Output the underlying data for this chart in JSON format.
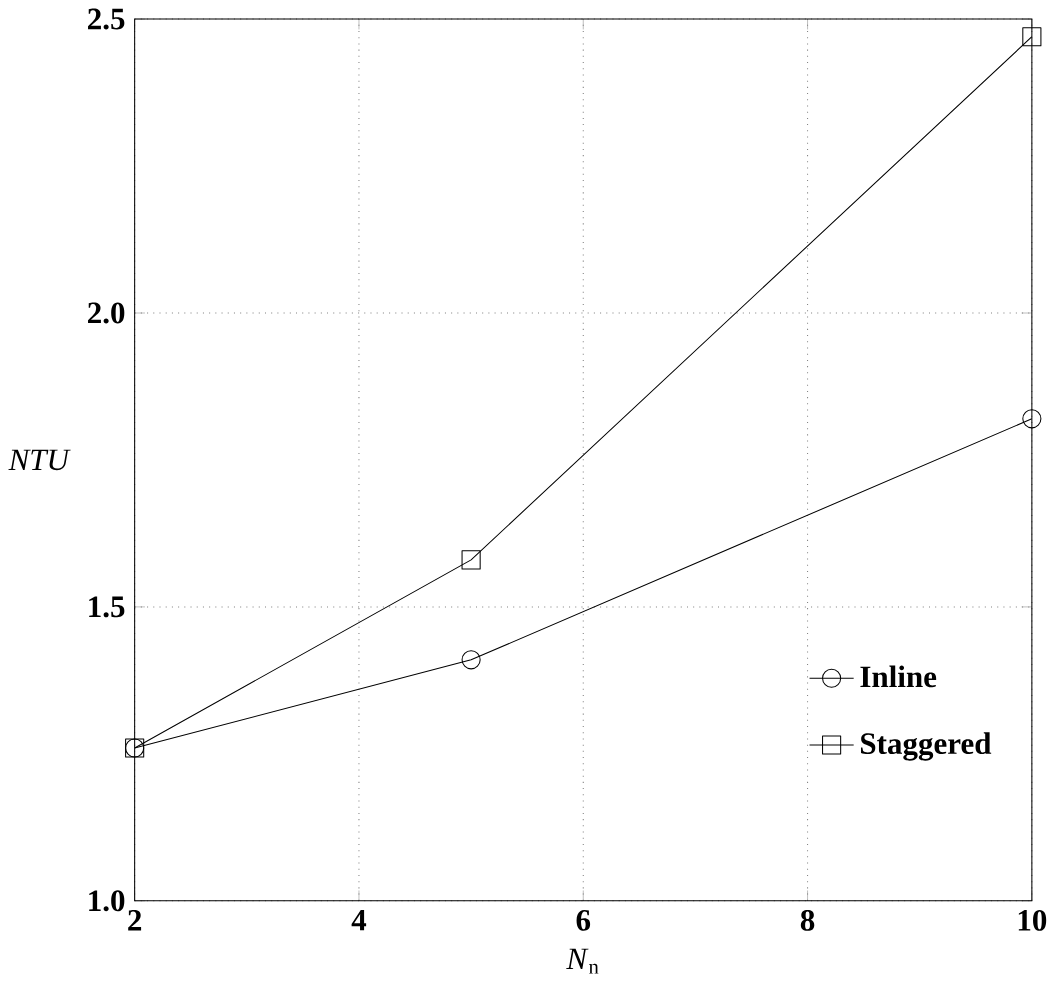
{
  "chart_data": {
    "type": "line",
    "xlabel": "*N*$_{n}$",
    "ylabel": "NTU",
    "x": [
      2,
      5,
      10
    ],
    "series": [
      {
        "name": "Inline",
        "color": "#000000",
        "values": [
          1.26,
          1.41,
          1.82
        ],
        "marker": "circle"
      },
      {
        "name": "Staggered",
        "color": "#000000",
        "values": [
          1.26,
          1.58,
          2.47
        ],
        "marker": "square"
      }
    ],
    "xlim": [
      2,
      10
    ],
    "ylim": [
      1.0,
      2.5
    ],
    "xticks": [
      2,
      4,
      6,
      8,
      10
    ],
    "yticks": [
      {
        "value": 1.0,
        "label": "1.0"
      },
      {
        "value": 1.5,
        "label": "1.5"
      },
      {
        "value": 2.0,
        "label": "2.0"
      },
      {
        "value": 2.5,
        "label": "2.5"
      }
    ],
    "grid": true,
    "legend": "bottom right",
    "line_style": "solid"
  }
}
